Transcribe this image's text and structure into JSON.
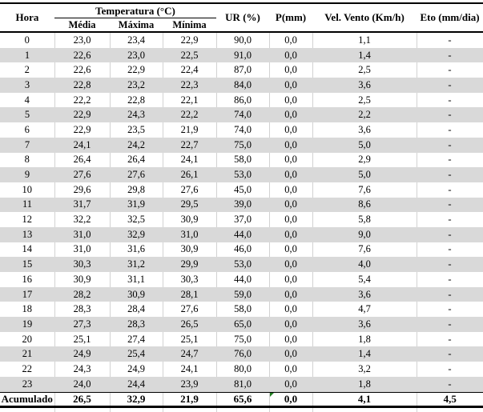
{
  "table": {
    "headers": {
      "hora": "Hora",
      "temperatura_group": "Temperatura (°C)",
      "media": "Média",
      "maxima": "Máxima",
      "minima": "Mínima",
      "ur": "UR (%)",
      "p": "P(mm)",
      "vento": "Vel. Vento (Km/h)",
      "eto": "Eto (mm/dia)"
    },
    "rows": [
      [
        "0",
        "23,0",
        "23,4",
        "22,9",
        "90,0",
        "0,0",
        "1,1",
        "-"
      ],
      [
        "1",
        "22,6",
        "23,0",
        "22,5",
        "91,0",
        "0,0",
        "1,4",
        "-"
      ],
      [
        "2",
        "22,6",
        "22,9",
        "22,4",
        "87,0",
        "0,0",
        "2,5",
        "-"
      ],
      [
        "3",
        "22,8",
        "23,2",
        "22,3",
        "84,0",
        "0,0",
        "3,6",
        "-"
      ],
      [
        "4",
        "22,2",
        "22,8",
        "22,1",
        "86,0",
        "0,0",
        "2,5",
        "-"
      ],
      [
        "5",
        "22,9",
        "24,3",
        "22,2",
        "74,0",
        "0,0",
        "2,2",
        "-"
      ],
      [
        "6",
        "22,9",
        "23,5",
        "21,9",
        "74,0",
        "0,0",
        "3,6",
        "-"
      ],
      [
        "7",
        "24,1",
        "24,2",
        "22,7",
        "75,0",
        "0,0",
        "5,0",
        "-"
      ],
      [
        "8",
        "26,4",
        "26,4",
        "24,1",
        "58,0",
        "0,0",
        "2,9",
        "-"
      ],
      [
        "9",
        "27,6",
        "27,6",
        "26,1",
        "53,0",
        "0,0",
        "5,0",
        "-"
      ],
      [
        "10",
        "29,6",
        "29,8",
        "27,6",
        "45,0",
        "0,0",
        "7,6",
        "-"
      ],
      [
        "11",
        "31,7",
        "31,9",
        "29,5",
        "39,0",
        "0,0",
        "8,6",
        "-"
      ],
      [
        "12",
        "32,2",
        "32,5",
        "30,9",
        "37,0",
        "0,0",
        "5,8",
        "-"
      ],
      [
        "13",
        "31,0",
        "32,9",
        "31,0",
        "44,0",
        "0,0",
        "9,0",
        "-"
      ],
      [
        "14",
        "31,0",
        "31,6",
        "30,9",
        "46,0",
        "0,0",
        "7,6",
        "-"
      ],
      [
        "15",
        "30,3",
        "31,2",
        "29,9",
        "53,0",
        "0,0",
        "4,0",
        "-"
      ],
      [
        "16",
        "30,9",
        "31,1",
        "30,3",
        "44,0",
        "0,0",
        "5,4",
        "-"
      ],
      [
        "17",
        "28,2",
        "30,9",
        "28,1",
        "59,0",
        "0,0",
        "3,6",
        "-"
      ],
      [
        "18",
        "28,3",
        "28,4",
        "27,6",
        "58,0",
        "0,0",
        "4,7",
        "-"
      ],
      [
        "19",
        "27,3",
        "28,3",
        "26,5",
        "65,0",
        "0,0",
        "3,6",
        "-"
      ],
      [
        "20",
        "25,1",
        "27,4",
        "25,1",
        "75,0",
        "0,0",
        "1,8",
        "-"
      ],
      [
        "21",
        "24,9",
        "25,4",
        "24,7",
        "76,0",
        "0,0",
        "1,4",
        "-"
      ],
      [
        "22",
        "24,3",
        "24,9",
        "24,1",
        "80,0",
        "0,0",
        "3,2",
        "-"
      ],
      [
        "23",
        "24,0",
        "24,4",
        "23,9",
        "81,0",
        "0,0",
        "1,8",
        "-"
      ]
    ],
    "footer": [
      "Acumulado",
      "26,5",
      "32,9",
      "21,9",
      "65,6",
      "0,0",
      "4,1",
      "4,5"
    ],
    "footer_flag_column_index": 5
  },
  "colors": {
    "alt_row_fill": "#d9d9d9",
    "gridline": "#d2d2d2",
    "rule_black": "#000000",
    "error_flag_green": "#1f7d1f"
  }
}
